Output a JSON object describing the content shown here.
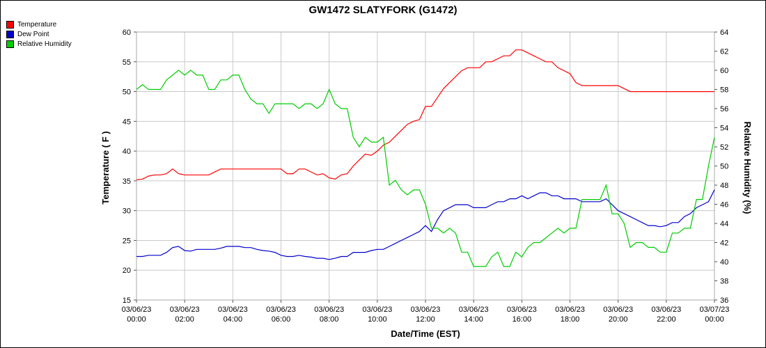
{
  "window": {
    "title": "GW1472 SLATYFORK (G1472)"
  },
  "chart_data": {
    "type": "line",
    "title": "GW1472 SLATYFORK (G1472)",
    "xlabel": "Date/Time (EST)",
    "ylabel_left": "Temperature ( F )",
    "ylabel_right": "Relative Humidity (%)",
    "grid": true,
    "legend_position": "top-left",
    "x": {
      "start_hour": 0,
      "step_hours": 0.25,
      "points": 97,
      "start_label": "03/06/23 00:00",
      "end_label": "03/07/23 00:00"
    },
    "x_ticks": [
      {
        "hour": 0,
        "date": "03/06/23",
        "time": "00:00"
      },
      {
        "hour": 2,
        "date": "03/06/23",
        "time": "02:00"
      },
      {
        "hour": 4,
        "date": "03/06/23",
        "time": "04:00"
      },
      {
        "hour": 6,
        "date": "03/06/23",
        "time": "06:00"
      },
      {
        "hour": 8,
        "date": "03/06/23",
        "time": "08:00"
      },
      {
        "hour": 10,
        "date": "03/06/23",
        "time": "10:00"
      },
      {
        "hour": 12,
        "date": "03/06/23",
        "time": "12:00"
      },
      {
        "hour": 14,
        "date": "03/06/23",
        "time": "14:00"
      },
      {
        "hour": 16,
        "date": "03/06/23",
        "time": "16:00"
      },
      {
        "hour": 18,
        "date": "03/06/23",
        "time": "18:00"
      },
      {
        "hour": 20,
        "date": "03/06/23",
        "time": "20:00"
      },
      {
        "hour": 22,
        "date": "03/06/23",
        "time": "22:00"
      },
      {
        "hour": 24,
        "date": "03/07/23",
        "time": "00:00"
      }
    ],
    "y_left": {
      "min": 15,
      "max": 60,
      "step": 5,
      "ticks": [
        60,
        55,
        50,
        45,
        40,
        35,
        30,
        25,
        20,
        15
      ]
    },
    "y_right": {
      "min": 36,
      "max": 64,
      "step": 2,
      "ticks": [
        64,
        62,
        60,
        58,
        56,
        54,
        52,
        50,
        48,
        46,
        44,
        42,
        40,
        38,
        36
      ]
    },
    "series": [
      {
        "name": "Temperature",
        "axis": "left",
        "color": "#ff0000",
        "values": [
          35.2,
          35.3,
          35.8,
          36,
          36,
          36.2,
          37,
          36.2,
          36,
          36,
          36,
          36,
          36,
          36.5,
          37,
          37,
          37,
          37,
          37,
          37,
          37,
          37,
          37,
          37,
          37,
          36.2,
          36.2,
          37,
          37,
          36.5,
          36,
          36.2,
          35.5,
          35.3,
          36,
          36.2,
          37.5,
          38.5,
          39.5,
          39.3,
          40,
          41,
          41.5,
          42.5,
          43.5,
          44.5,
          45,
          45.3,
          47.5,
          47.5,
          49,
          50.5,
          51.5,
          52.5,
          53.5,
          54,
          54,
          54,
          55,
          55,
          55.5,
          56,
          56,
          57,
          57,
          56.5,
          56,
          55.5,
          55,
          55,
          54,
          53.5,
          53,
          51.5,
          51,
          51,
          51,
          51,
          51,
          51,
          51,
          50.5,
          50,
          50,
          50,
          50,
          50,
          50,
          50,
          50,
          50,
          50,
          50,
          50,
          50,
          50,
          50
        ]
      },
      {
        "name": "Dew Point",
        "axis": "left",
        "color": "#0000cc",
        "values": [
          22.3,
          22.3,
          22.5,
          22.5,
          22.5,
          23,
          23.8,
          24,
          23.3,
          23.2,
          23.5,
          23.5,
          23.5,
          23.5,
          23.7,
          24,
          24,
          24,
          23.8,
          23.8,
          23.5,
          23.3,
          23.2,
          23,
          22.5,
          22.3,
          22.3,
          22.5,
          22.3,
          22.2,
          22,
          22,
          21.8,
          22,
          22.3,
          22.3,
          23,
          23,
          23,
          23.3,
          23.5,
          23.5,
          24,
          24.5,
          25,
          25.5,
          26,
          26.5,
          27.5,
          26.5,
          28.5,
          30,
          30.5,
          31,
          31,
          31,
          30.5,
          30.5,
          30.5,
          31,
          31.5,
          31.5,
          32,
          32,
          32.5,
          32,
          32.5,
          33,
          33,
          32.5,
          32.5,
          32,
          32,
          32,
          31.5,
          31.5,
          31.5,
          31.5,
          32,
          31,
          30,
          29.5,
          29,
          28.5,
          28,
          27.5,
          27.5,
          27.3,
          27.5,
          28,
          28,
          29,
          29.5,
          30.5,
          31,
          31.5,
          33.5
        ]
      },
      {
        "name": "Relative Humidity",
        "axis": "right",
        "color": "#00cc00",
        "values": [
          58,
          58.5,
          58,
          58,
          58,
          59,
          59.5,
          60,
          59.5,
          60,
          59.5,
          59.5,
          58,
          58,
          59,
          59,
          59.5,
          59.5,
          58,
          57,
          56.5,
          56.5,
          55.5,
          56.5,
          56.5,
          56.5,
          56.5,
          56,
          56.5,
          56.5,
          56,
          56.5,
          58,
          56.5,
          56,
          56,
          53,
          52,
          53,
          52.5,
          52.5,
          53,
          48,
          48.5,
          47.5,
          47,
          47.5,
          47.5,
          46,
          43.5,
          43.5,
          43,
          43.5,
          43,
          41,
          41,
          39.5,
          39.5,
          39.5,
          40.5,
          41,
          39.5,
          39.5,
          41,
          40.5,
          41.5,
          42,
          42,
          42.5,
          43,
          43.5,
          43,
          43.5,
          43.5,
          46.5,
          46.5,
          46.5,
          46.5,
          48,
          45,
          45,
          44,
          41.5,
          42,
          42,
          41.5,
          41.5,
          41,
          41,
          43,
          43,
          43.5,
          43.5,
          46.5,
          46.5,
          50,
          53
        ]
      }
    ]
  }
}
